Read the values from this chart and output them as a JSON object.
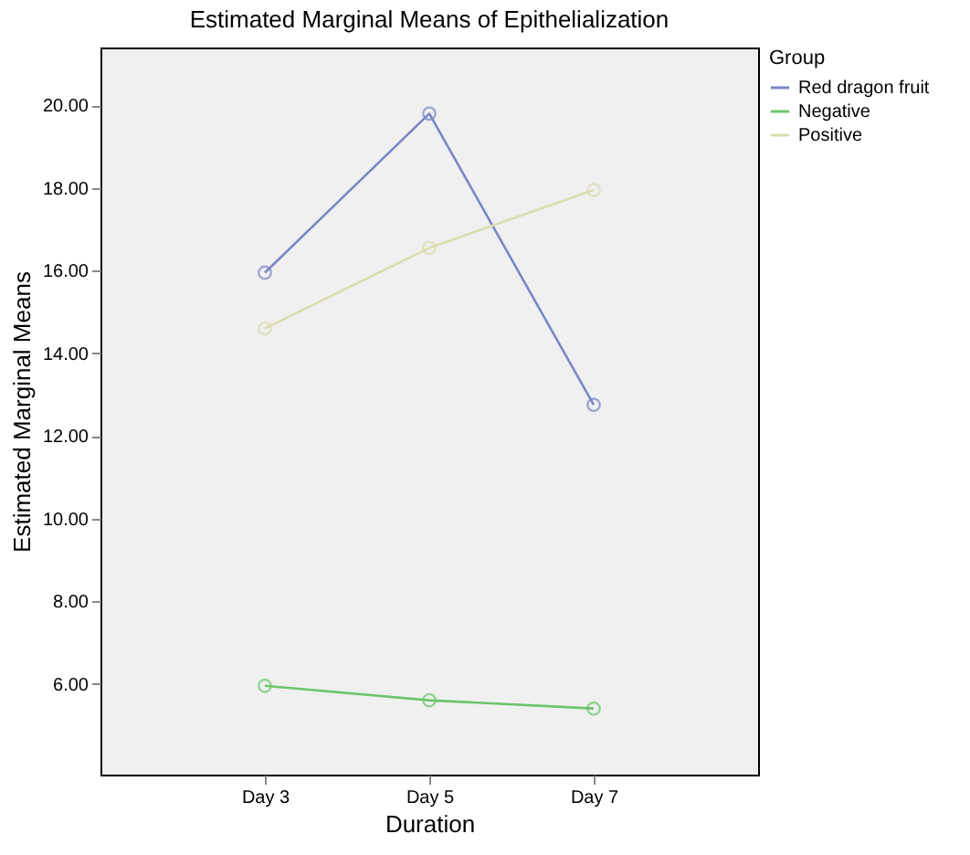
{
  "chart_data": {
    "type": "line",
    "title": "Estimated Marginal Means of Epithelialization",
    "xlabel": "Duration",
    "ylabel": "Estimated Marginal Means",
    "legend_title": "Group",
    "categories": [
      "Day 3",
      "Day 5",
      "Day 7"
    ],
    "series": [
      {
        "name": "Red dragon fruit",
        "color": "#7b86c4",
        "values": [
          15.95,
          19.8,
          12.75
        ]
      },
      {
        "name": "Negative",
        "color": "#6cc56c",
        "values": [
          5.95,
          5.6,
          5.4
        ]
      },
      {
        "name": "Positive",
        "color": "#dcdcb0",
        "values": [
          14.6,
          16.55,
          17.95
        ]
      }
    ],
    "ylim": [
      3.8,
      21.4
    ],
    "yticks": [
      {
        "value": 6,
        "label": "6.00"
      },
      {
        "value": 8,
        "label": "8.00"
      },
      {
        "value": 10,
        "label": "10.00"
      },
      {
        "value": 12,
        "label": "12.00"
      },
      {
        "value": 14,
        "label": "14.00"
      },
      {
        "value": 16,
        "label": "16.00"
      },
      {
        "value": 18,
        "label": "18.00"
      },
      {
        "value": 20,
        "label": "20.00"
      }
    ],
    "grid": false,
    "legend": "top right",
    "marker": "circle",
    "line_style": "solid"
  }
}
